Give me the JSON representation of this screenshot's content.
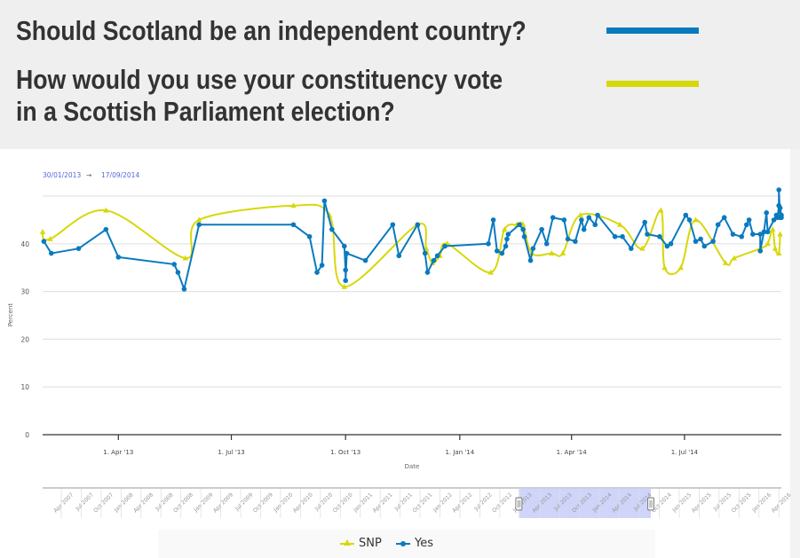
{
  "header": {
    "question1": "Should Scotland be an independent country?",
    "question2_line1": "How would you use your constituency vote",
    "question2_line2": "in a Scottish Parliament election?",
    "question1_color": "#0a7abf",
    "question2_color": "#d7d80a"
  },
  "range_selector": {
    "from": "30/01/2013",
    "arrow": "→",
    "to": "17/09/2014"
  },
  "chart_data": {
    "type": "line",
    "title": "",
    "xlabel": "Date",
    "ylabel": "Percent",
    "xlim": [
      "2013-01-30",
      "2014-09-17"
    ],
    "ylim": [
      0,
      50
    ],
    "yticks": [
      0,
      10,
      20,
      30,
      40
    ],
    "xticks": [
      {
        "date": "2013-04-01",
        "label": "1. Apr '13"
      },
      {
        "date": "2013-07-01",
        "label": "1. Jul '13"
      },
      {
        "date": "2013-10-01",
        "label": "1. Oct '13"
      },
      {
        "date": "2014-01-01",
        "label": "1. Jan '14"
      },
      {
        "date": "2014-04-01",
        "label": "1. Apr '14"
      },
      {
        "date": "2014-07-01",
        "label": "1. Jul '14"
      }
    ],
    "grid": true,
    "legend": "bottom-center",
    "series": [
      {
        "name": "SNP",
        "color": "#d7d80a",
        "marker": "triangle",
        "smooth": true,
        "points": [
          [
            "2013-01-25",
            42.5
          ],
          [
            "2013-02-05",
            41
          ],
          [
            "2013-03-22",
            47
          ],
          [
            "2013-05-25",
            37
          ],
          [
            "2013-06-05",
            45
          ],
          [
            "2013-08-20",
            48
          ],
          [
            "2013-09-18",
            46
          ],
          [
            "2013-09-30",
            31
          ],
          [
            "2013-11-28",
            44
          ],
          [
            "2013-12-05",
            39
          ],
          [
            "2013-12-10",
            36
          ],
          [
            "2013-12-16",
            37.5
          ],
          [
            "2013-12-22",
            40
          ],
          [
            "2014-01-26",
            34
          ],
          [
            "2014-02-06",
            43
          ],
          [
            "2014-02-16",
            44
          ],
          [
            "2014-02-21",
            44
          ],
          [
            "2014-02-28",
            38
          ],
          [
            "2014-03-16",
            38
          ],
          [
            "2014-03-25",
            38
          ],
          [
            "2014-04-08",
            46
          ],
          [
            "2014-05-10",
            44
          ],
          [
            "2014-05-28",
            39
          ],
          [
            "2014-06-12",
            47
          ],
          [
            "2014-06-15",
            35
          ],
          [
            "2014-06-28",
            35
          ],
          [
            "2014-07-10",
            45
          ],
          [
            "2014-08-03",
            36
          ],
          [
            "2014-08-10",
            37
          ],
          [
            "2014-08-31",
            39
          ],
          [
            "2014-09-06",
            40
          ],
          [
            "2014-09-10",
            43
          ],
          [
            "2014-09-12",
            39
          ],
          [
            "2014-09-15",
            38
          ],
          [
            "2014-09-16",
            42
          ]
        ]
      },
      {
        "name": "Yes",
        "color": "#0a7abf",
        "marker": "circle",
        "smooth": false,
        "points": [
          [
            "2013-01-31",
            40.5
          ],
          [
            "2013-02-06",
            38
          ],
          [
            "2013-02-28",
            39
          ],
          [
            "2013-03-22",
            43
          ],
          [
            "2013-04-01",
            37.2
          ],
          [
            "2013-05-16",
            35.7
          ],
          [
            "2013-05-19",
            34
          ],
          [
            "2013-05-24",
            30.5
          ],
          [
            "2013-06-05",
            44
          ],
          [
            "2013-08-20",
            44
          ],
          [
            "2013-09-02",
            41.5
          ],
          [
            "2013-09-08",
            34
          ],
          [
            "2013-09-12",
            35.5
          ],
          [
            "2013-09-14",
            49
          ],
          [
            "2013-09-20",
            43
          ],
          [
            "2013-09-30",
            39.5
          ],
          [
            "2013-10-01",
            34.5
          ],
          [
            "2013-10-01",
            32.3
          ],
          [
            "2013-10-02",
            38
          ],
          [
            "2013-10-17",
            36.5
          ],
          [
            "2013-11-08",
            44
          ],
          [
            "2013-11-13",
            37.5
          ],
          [
            "2013-11-28",
            44
          ],
          [
            "2013-12-04",
            38
          ],
          [
            "2013-12-06",
            34
          ],
          [
            "2013-12-11",
            36.5
          ],
          [
            "2013-12-14",
            37.5
          ],
          [
            "2013-12-20",
            39.5
          ],
          [
            "2014-01-24",
            40
          ],
          [
            "2014-01-28",
            45
          ],
          [
            "2014-01-31",
            38.5
          ],
          [
            "2014-02-04",
            38
          ],
          [
            "2014-02-07",
            39.5
          ],
          [
            "2014-02-08",
            41
          ],
          [
            "2014-02-09",
            42
          ],
          [
            "2014-02-18",
            44
          ],
          [
            "2014-02-21",
            43
          ],
          [
            "2014-02-22",
            41.5
          ],
          [
            "2014-02-27",
            36.5
          ],
          [
            "2014-03-01",
            39
          ],
          [
            "2014-03-08",
            43
          ],
          [
            "2014-03-12",
            40
          ],
          [
            "2014-03-17",
            45.5
          ],
          [
            "2014-03-26",
            45
          ],
          [
            "2014-03-29",
            41
          ],
          [
            "2014-04-04",
            40.5
          ],
          [
            "2014-04-09",
            45
          ],
          [
            "2014-04-11",
            43
          ],
          [
            "2014-04-15",
            45.5
          ],
          [
            "2014-04-20",
            44
          ],
          [
            "2014-04-22",
            46
          ],
          [
            "2014-05-06",
            41.5
          ],
          [
            "2014-05-12",
            41.5
          ],
          [
            "2014-05-19",
            39
          ],
          [
            "2014-05-30",
            44.5
          ],
          [
            "2014-06-01",
            42
          ],
          [
            "2014-06-11",
            41.5
          ],
          [
            "2014-06-17",
            39.5
          ],
          [
            "2014-06-20",
            40
          ],
          [
            "2014-07-02",
            46
          ],
          [
            "2014-07-05",
            45
          ],
          [
            "2014-07-10",
            40.5
          ],
          [
            "2014-07-14",
            41
          ],
          [
            "2014-07-17",
            39.5
          ],
          [
            "2014-07-24",
            40.5
          ],
          [
            "2014-07-28",
            44
          ],
          [
            "2014-08-02",
            45.5
          ],
          [
            "2014-08-09",
            42
          ],
          [
            "2014-08-16",
            41.5
          ],
          [
            "2014-08-20",
            44
          ],
          [
            "2014-08-22",
            45
          ],
          [
            "2014-08-25",
            42
          ],
          [
            "2014-08-31",
            42
          ],
          [
            "2014-08-31",
            38.5
          ],
          [
            "2014-09-03",
            42.5
          ],
          [
            "2014-09-05",
            46.5
          ],
          [
            "2014-09-06",
            42.5
          ],
          [
            "2014-09-11",
            45
          ],
          [
            "2014-09-13",
            46
          ],
          [
            "2014-09-14",
            45.5
          ],
          [
            "2014-09-15",
            48
          ],
          [
            "2014-09-15",
            51.3
          ],
          [
            "2014-09-16",
            45.5
          ],
          [
            "2014-09-16",
            47.5
          ],
          [
            "2014-09-17",
            46
          ],
          [
            "2014-09-17",
            45.5
          ]
        ]
      }
    ]
  },
  "navigator": {
    "labels": [
      "Apr 2007",
      "Jul 2007",
      "Oct 2007",
      "Jan 2008",
      "Apr 2008",
      "Jul 2008",
      "Oct 2008",
      "Jan 2009",
      "Apr 2009",
      "Jul 2009",
      "Oct 2009",
      "Jan 2010",
      "Apr 2010",
      "Jul 2010",
      "Oct 2010",
      "Jan 2011",
      "Apr 2011",
      "Jul 2011",
      "Oct 2011",
      "Jan 2012",
      "Apr 2012",
      "Jul 2012",
      "Oct 2012",
      "Jan 2013",
      "Apr 2013",
      "Jul 2013",
      "Oct 2013",
      "Jan 2014",
      "Apr 2014",
      "Jul 2014",
      "Oct 2014",
      "Jan 2015",
      "Apr 2015",
      "Jul 2015",
      "Oct 2015",
      "Jan 2016",
      "Apr 2016"
    ],
    "selected_from": "Jan 2013",
    "selected_to": "Jul 2014",
    "selection_color": "#c7cdf8"
  },
  "legend": {
    "items": [
      {
        "label": "SNP",
        "color": "#d7d80a"
      },
      {
        "label": "Yes",
        "color": "#0a7abf"
      }
    ]
  }
}
